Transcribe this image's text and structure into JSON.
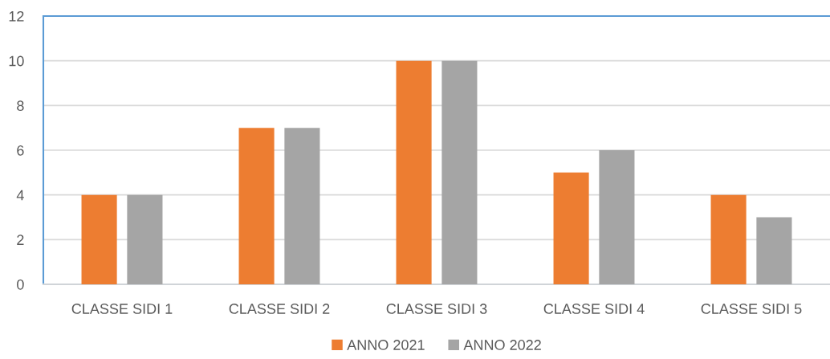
{
  "chart_data": {
    "type": "bar",
    "categories": [
      "CLASSE SIDI 1",
      "CLASSE SIDI 2",
      "CLASSE SIDI 3",
      "CLASSE SIDI 4",
      "CLASSE SIDI 5"
    ],
    "series": [
      {
        "name": "ANNO 2021",
        "color": "#ed7d31",
        "values": [
          4,
          7,
          10,
          5,
          4
        ]
      },
      {
        "name": "ANNO 2022",
        "color": "#a5a5a5",
        "values": [
          4,
          7,
          10,
          6,
          3
        ]
      }
    ],
    "ylim": [
      0,
      12
    ],
    "yticks": [
      0,
      2,
      4,
      6,
      8,
      10,
      12
    ],
    "grid": "y",
    "legend": "bottom"
  }
}
